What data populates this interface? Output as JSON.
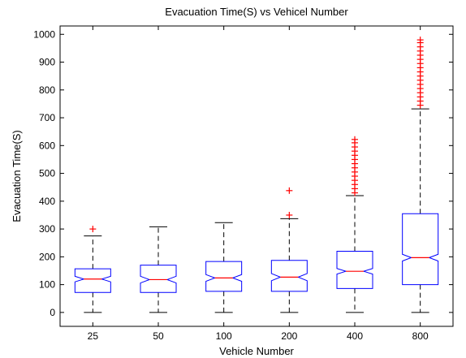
{
  "chart_data": {
    "type": "box",
    "title": "Evacuation Time(S) vs Vehicel Number",
    "xlabel": "Vehicle Number",
    "ylabel": "Evacuation Time(S)",
    "categories": [
      "25",
      "50",
      "100",
      "200",
      "400",
      "800"
    ],
    "ylim": [
      -50,
      1030
    ],
    "yticks": [
      0,
      100,
      200,
      300,
      400,
      500,
      600,
      700,
      800,
      900,
      1000
    ],
    "notched": true,
    "grid": false,
    "colors": {
      "box": "#0000ff",
      "median": "#ff0000",
      "whisker": "#000000",
      "outlier": "#ff0000"
    },
    "boxes": [
      {
        "category": "25",
        "min": 0,
        "q1": 72,
        "median": 120,
        "q3": 157,
        "max": 275,
        "notch": [
          110,
          130
        ],
        "outliers": [
          300
        ]
      },
      {
        "category": "50",
        "min": 0,
        "q1": 72,
        "median": 118,
        "q3": 170,
        "max": 308,
        "notch": [
          106,
          130
        ],
        "outliers": []
      },
      {
        "category": "100",
        "min": 0,
        "q1": 76,
        "median": 124,
        "q3": 183,
        "max": 323,
        "notch": [
          112,
          136
        ],
        "outliers": []
      },
      {
        "category": "200",
        "min": 0,
        "q1": 76,
        "median": 127,
        "q3": 187,
        "max": 337,
        "notch": [
          114,
          140
        ],
        "outliers": [
          350,
          438
        ]
      },
      {
        "category": "400",
        "min": 0,
        "q1": 86,
        "median": 148,
        "q3": 220,
        "max": 420,
        "notch": [
          138,
          158
        ],
        "outliers": [
          430,
          445,
          460,
          475,
          490,
          505,
          520,
          535,
          550,
          565,
          580,
          595,
          610,
          622
        ]
      },
      {
        "category": "800",
        "min": 0,
        "q1": 100,
        "median": 197,
        "q3": 355,
        "max": 732,
        "notch": [
          185,
          209
        ],
        "outliers": [
          745,
          760,
          775,
          790,
          805,
          820,
          835,
          850,
          865,
          880,
          895,
          910,
          925,
          940,
          955,
          970,
          980
        ]
      }
    ]
  }
}
